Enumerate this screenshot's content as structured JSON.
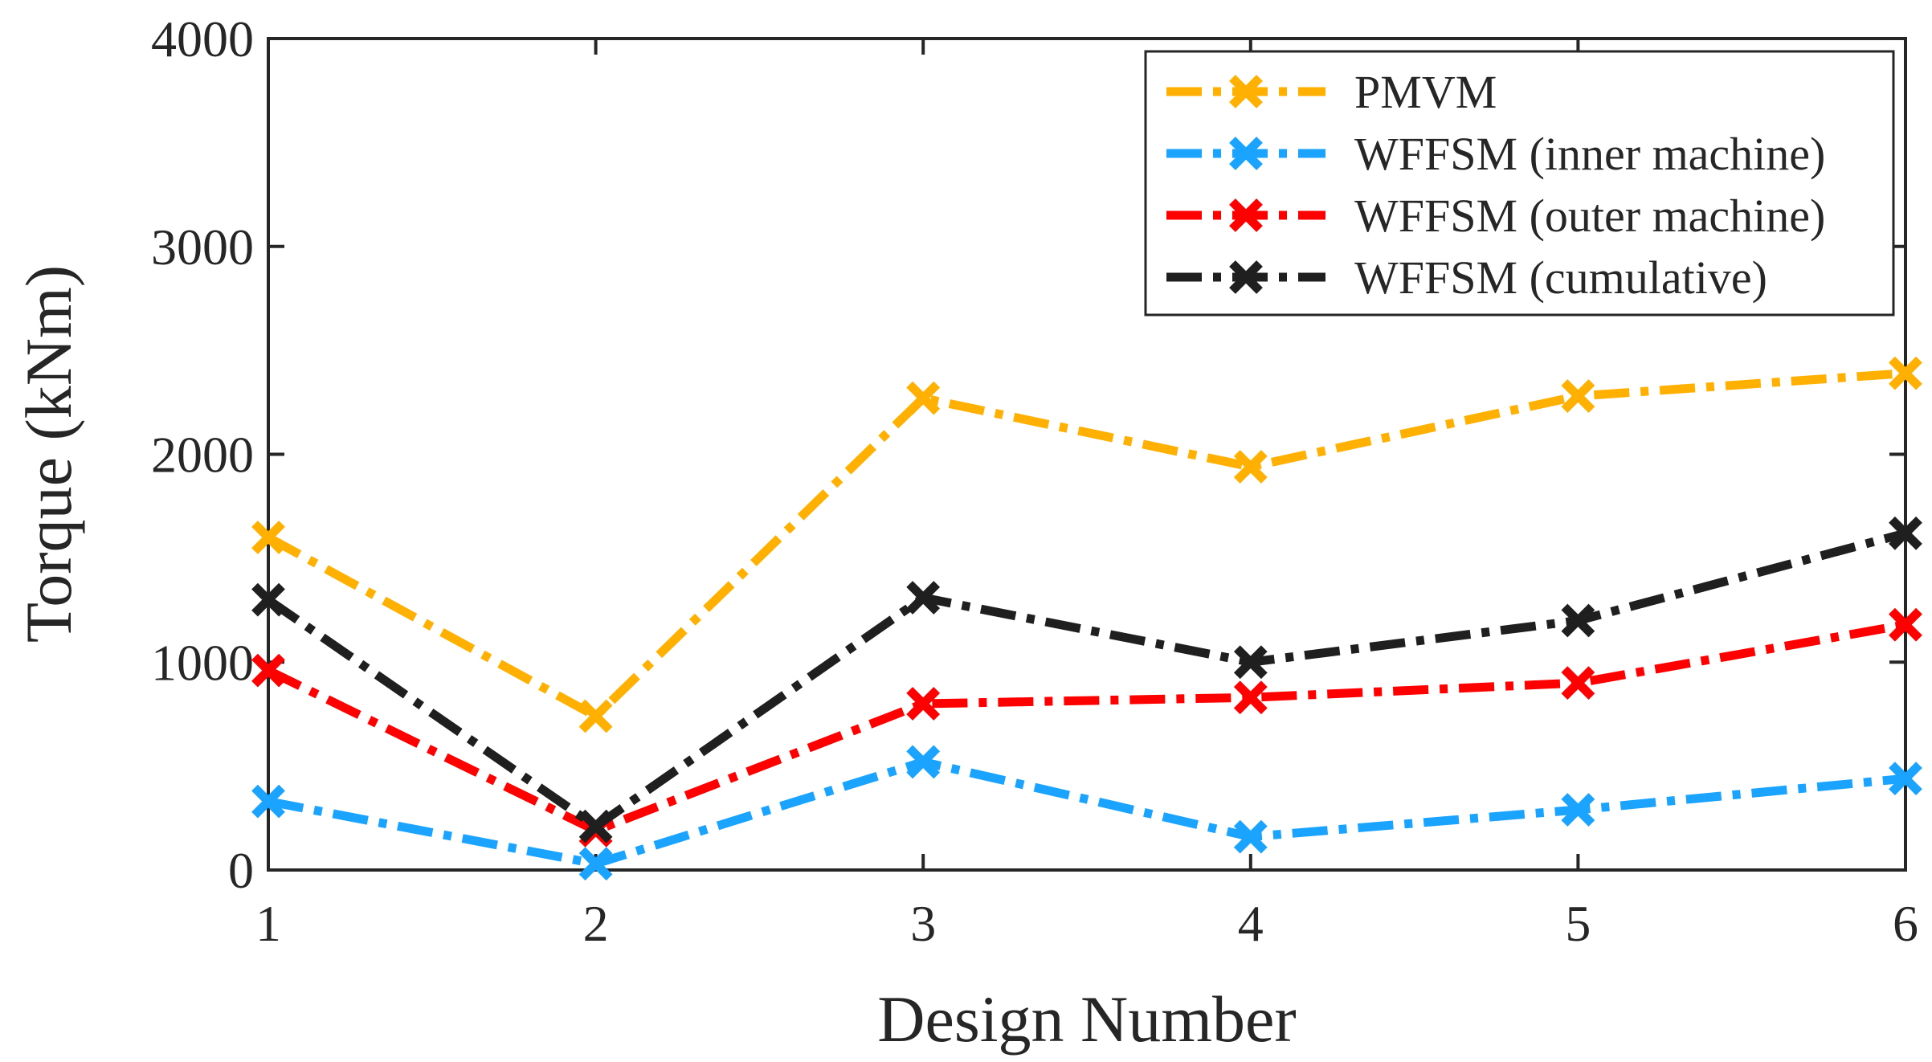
{
  "chart_data": {
    "type": "line",
    "title": "",
    "xlabel": "Design Number",
    "ylabel": "Torque (kNm)",
    "x": [
      1,
      2,
      3,
      4,
      5,
      6
    ],
    "x_tick_labels": [
      "1",
      "2",
      "3",
      "4",
      "5",
      "6"
    ],
    "y_tick_values": [
      0,
      1000,
      2000,
      3000,
      4000
    ],
    "y_tick_labels": [
      "0",
      "1000",
      "2000",
      "3000",
      "4000"
    ],
    "xlim": [
      1,
      6
    ],
    "ylim": [
      0,
      4000
    ],
    "grid": false,
    "legend_position": "top-right",
    "series": [
      {
        "name": "PMVM",
        "color": "#FFB000",
        "marker": "x",
        "line_style": "dash-dot",
        "values": [
          1600,
          740,
          2270,
          1940,
          2280,
          2390
        ]
      },
      {
        "name": "WFFSM (inner machine)",
        "color": "#1AA3FF",
        "marker": "x",
        "line_style": "dash-dot",
        "values": [
          330,
          30,
          520,
          160,
          290,
          440
        ]
      },
      {
        "name": "WFFSM (outer machine)",
        "color": "#FF0000",
        "marker": "x",
        "line_style": "dash-dot",
        "values": [
          960,
          190,
          800,
          830,
          900,
          1180
        ]
      },
      {
        "name": "WFFSM (cumulative)",
        "color": "#1F1F1F",
        "marker": "x",
        "line_style": "dash-dot",
        "values": [
          1300,
          210,
          1310,
          1000,
          1200,
          1620
        ]
      }
    ]
  }
}
